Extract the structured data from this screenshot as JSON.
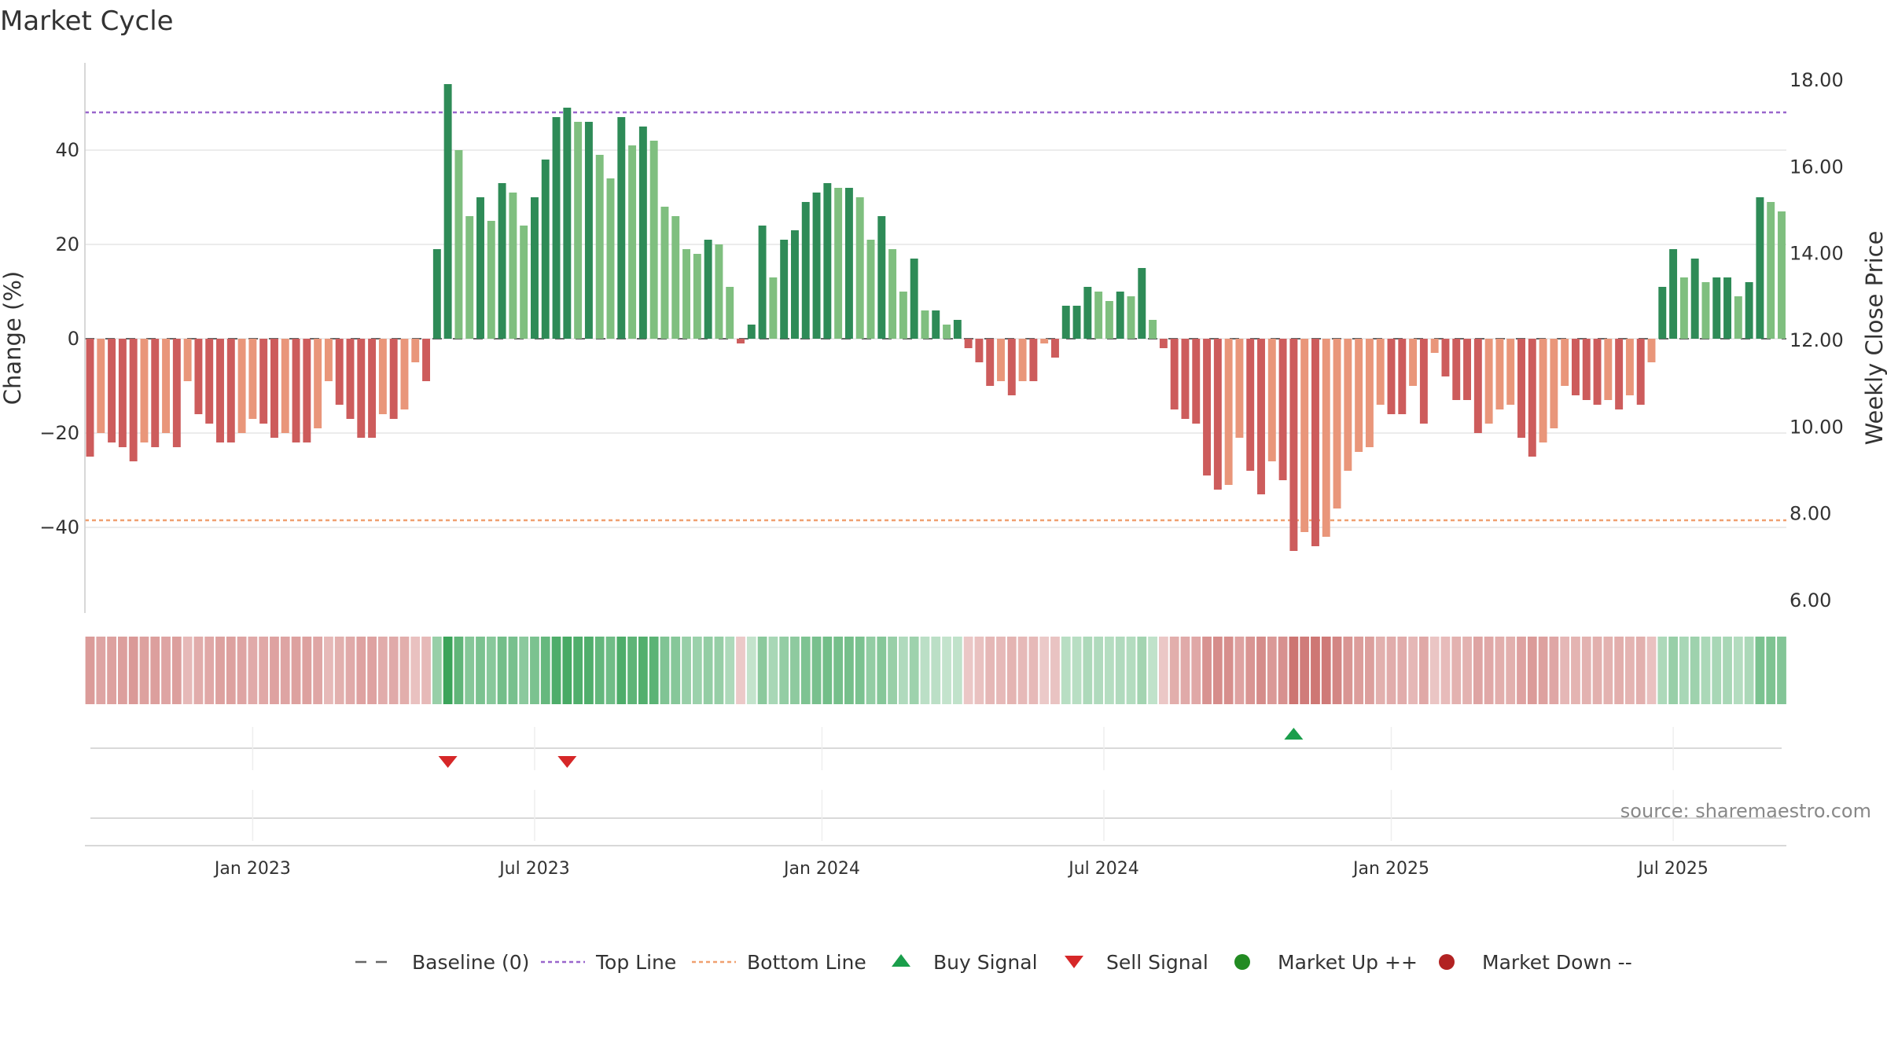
{
  "chart_data": {
    "type": "bar",
    "title": "Market Cycle",
    "ylabel_left": "Change (%)",
    "ylabel_right": "Weekly Close Price",
    "y_left_ticks": [
      {
        "value": 40,
        "label": "40"
      },
      {
        "value": 20,
        "label": "20"
      },
      {
        "value": 0,
        "label": "0"
      },
      {
        "value": -20,
        "label": "−20"
      },
      {
        "value": -40,
        "label": "−40"
      }
    ],
    "y_right_ticks": [
      "18.00",
      "16.00",
      "14.00",
      "12.00",
      "10.00",
      "8.00",
      "6.00"
    ],
    "ylim_left": [
      -58,
      58
    ],
    "x_ticks": [
      {
        "label": "Jan 2023",
        "index": 15
      },
      {
        "label": "Jul 2023",
        "index": 41
      },
      {
        "label": "Jan 2024",
        "index": 67.5
      },
      {
        "label": "Jul 2024",
        "index": 93.5
      },
      {
        "label": "Jan 2025",
        "index": 120
      },
      {
        "label": "Jul 2025",
        "index": 146
      }
    ],
    "top_line": 48,
    "bottom_line": -38.5,
    "values": [
      -25,
      -20,
      -22,
      -23,
      -26,
      -22,
      -23,
      -20,
      -23,
      -9,
      -16,
      -18,
      -22,
      -22,
      -20,
      -17,
      -18,
      -21,
      -20,
      -22,
      -22,
      -19,
      -9,
      -14,
      -17,
      -21,
      -21,
      -16,
      -17,
      -15,
      -5,
      -9,
      19,
      54,
      40,
      26,
      30,
      25,
      33,
      31,
      24,
      30,
      38,
      47,
      49,
      46,
      46,
      39,
      34,
      47,
      41,
      45,
      42,
      28,
      26,
      19,
      18,
      21,
      20,
      11,
      -1,
      3,
      24,
      13,
      21,
      23,
      29,
      31,
      33,
      32,
      32,
      30,
      21,
      26,
      19,
      10,
      17,
      6,
      6,
      3,
      4,
      -2,
      -5,
      -10,
      -9,
      -12,
      -9,
      -9,
      -1,
      -4,
      7,
      7,
      11,
      10,
      8,
      10,
      9,
      15,
      4,
      -2,
      -15,
      -17,
      -18,
      -29,
      -32,
      -31,
      -21,
      -28,
      -33,
      -26,
      -30,
      -45,
      -41,
      -44,
      -42,
      -36,
      -28,
      -24,
      -23,
      -14,
      -16,
      -16,
      -10,
      -18,
      -3,
      -8,
      -13,
      -13,
      -20,
      -18,
      -15,
      -14,
      -21,
      -25,
      -22,
      -19,
      -10,
      -12,
      -13,
      -14,
      -13,
      -15,
      -12,
      -14,
      -5,
      11,
      19,
      13,
      17,
      12,
      13,
      13,
      9,
      12,
      30,
      29,
      27
    ],
    "sell_signals": [
      33,
      44
    ],
    "buy_signals": [
      111
    ],
    "colors": {
      "strong_up": "#2e8b57",
      "mild_up": "#7fbf7f",
      "strong_down": "#cd5c5c",
      "mild_down": "#e9967a",
      "top_line": "#9966cc",
      "bottom_line": "#f0a070",
      "buy": "#1a9e4b",
      "sell": "#d62728"
    },
    "legend": [
      {
        "label": "Baseline (0)",
        "symbol": "dash"
      },
      {
        "label": "Top Line",
        "symbol": "dot-purple"
      },
      {
        "label": "Bottom Line",
        "symbol": "dot-orange"
      },
      {
        "label": "Buy Signal",
        "symbol": "triangle-up"
      },
      {
        "label": "Sell Signal",
        "symbol": "triangle-down"
      },
      {
        "label": "Market Up ++",
        "symbol": "circle-green"
      },
      {
        "label": "Market Down --",
        "symbol": "circle-red"
      }
    ]
  },
  "source_text": "source: sharemaestro.com"
}
